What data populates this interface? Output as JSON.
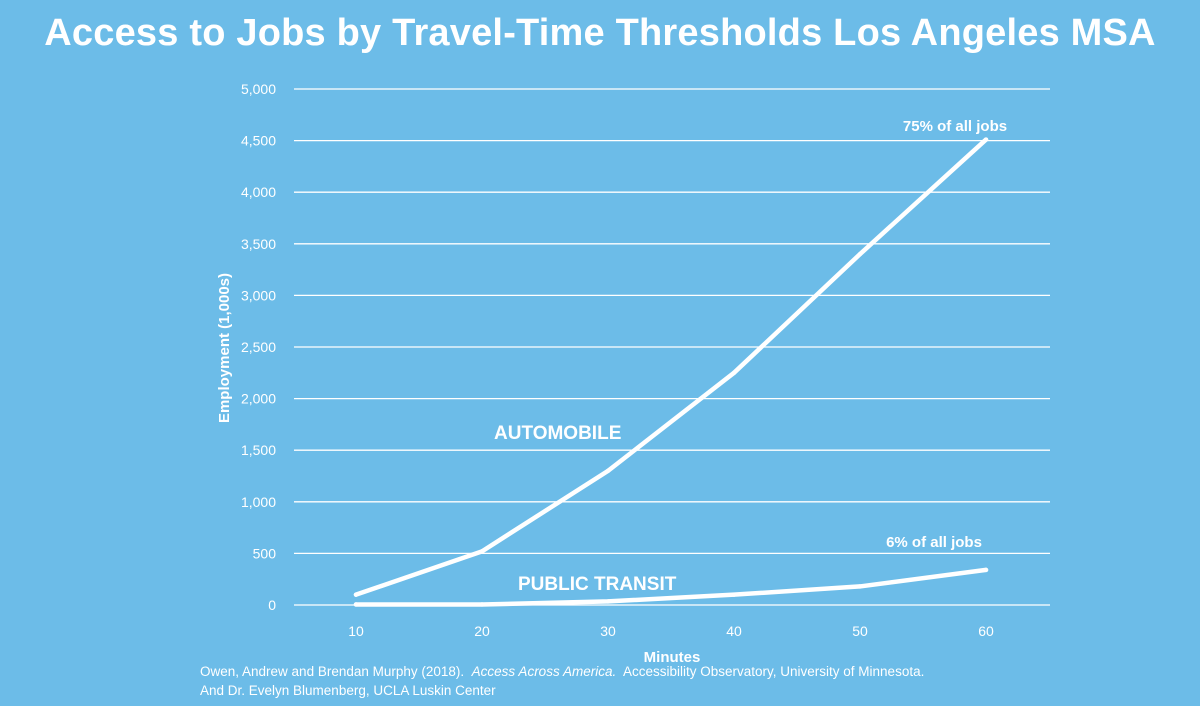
{
  "title": "Access to Jobs by Travel-Time Thresholds Los Angeles MSA",
  "source": {
    "line1_pre": "Owen, Andrew and Brendan Murphy (2018).",
    "line1_em": "Access Across America.",
    "line1_post": "Accessibility Observatory, University of Minnesota.",
    "line2": "And Dr. Evelyn Blumenberg, UCLA Luskin Center"
  },
  "colors": {
    "background": "#6cbce8",
    "foreground": "#ffffff"
  },
  "chart_data": {
    "type": "line",
    "title": "Access to Jobs by Travel-Time Thresholds Los Angeles MSA",
    "xlabel": "Minutes",
    "ylabel": "Employment (1,000s)",
    "x": [
      10,
      20,
      30,
      40,
      50,
      60
    ],
    "x_tick_labels": [
      "10",
      "20",
      "30",
      "40",
      "50",
      "60"
    ],
    "ylim": [
      0,
      5000
    ],
    "y_ticks": [
      0,
      500,
      1000,
      1500,
      2000,
      2500,
      3000,
      3500,
      4000,
      4500,
      5000
    ],
    "y_tick_labels": [
      "0",
      "500",
      "1,000",
      "1,500",
      "2,000",
      "2,500",
      "3,000",
      "3,500",
      "4,000",
      "4,500",
      "5,000"
    ],
    "grid": true,
    "series": [
      {
        "name": "AUTOMOBILE",
        "values": [
          100,
          520,
          1300,
          2250,
          3400,
          4510
        ],
        "end_annotation": "75% of all jobs"
      },
      {
        "name": "PUBLIC TRANSIT",
        "values": [
          5,
          5,
          35,
          100,
          180,
          340
        ],
        "end_annotation": "6% of all jobs"
      }
    ]
  }
}
